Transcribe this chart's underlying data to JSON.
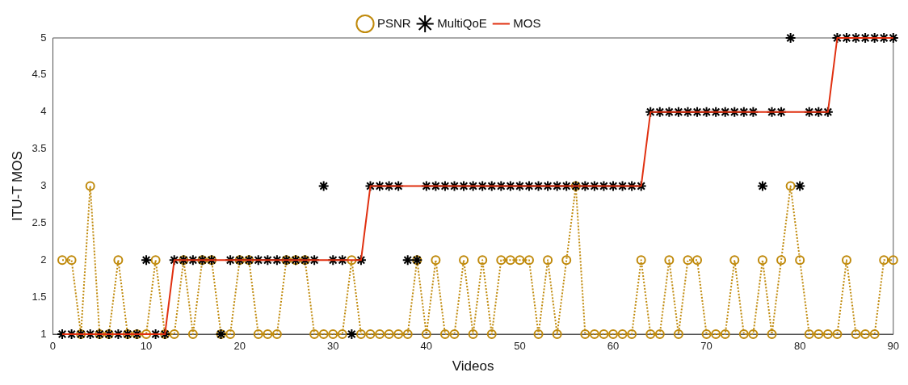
{
  "chart_data": {
    "type": "line",
    "xlabel": "Videos",
    "ylabel": "ITU-T MOS",
    "x": [
      1,
      2,
      3,
      4,
      5,
      6,
      7,
      8,
      9,
      10,
      11,
      12,
      13,
      14,
      15,
      16,
      17,
      18,
      19,
      20,
      21,
      22,
      23,
      24,
      25,
      26,
      27,
      28,
      29,
      30,
      31,
      32,
      33,
      34,
      35,
      36,
      37,
      38,
      39,
      40,
      41,
      42,
      43,
      44,
      45,
      46,
      47,
      48,
      49,
      50,
      51,
      52,
      53,
      54,
      55,
      56,
      57,
      58,
      59,
      60,
      61,
      62,
      63,
      64,
      65,
      66,
      67,
      68,
      69,
      70,
      71,
      72,
      73,
      74,
      75,
      76,
      77,
      78,
      79,
      80,
      81,
      82,
      83,
      84,
      85,
      86,
      87,
      88,
      89,
      90
    ],
    "series": [
      {
        "name": "PSNR",
        "type": "line",
        "color": "#c08a0c",
        "marker": "circle",
        "line_style": "dotted",
        "values": [
          2,
          2,
          1,
          3,
          1,
          1,
          2,
          1,
          1,
          1,
          2,
          1,
          1,
          2,
          1,
          2,
          2,
          1,
          1,
          2,
          2,
          1,
          1,
          1,
          2,
          2,
          2,
          1,
          1,
          1,
          1,
          2,
          1,
          1,
          1,
          1,
          1,
          1,
          2,
          1,
          2,
          1,
          1,
          2,
          1,
          2,
          1,
          2,
          2,
          2,
          2,
          1,
          2,
          1,
          2,
          3,
          1,
          1,
          1,
          1,
          1,
          1,
          2,
          1,
          1,
          2,
          1,
          2,
          2,
          1,
          1,
          1,
          2,
          1,
          1,
          2,
          1,
          2,
          3,
          2,
          1,
          1,
          1,
          1,
          2,
          1,
          1,
          1,
          2,
          2
        ]
      },
      {
        "name": "MultiQoE",
        "type": "scatter",
        "color": "#000000",
        "marker": "cross",
        "values": [
          1,
          1,
          1,
          1,
          1,
          1,
          1,
          1,
          1,
          2,
          1,
          1,
          2,
          2,
          2,
          2,
          2,
          1,
          2,
          2,
          2,
          2,
          2,
          2,
          2,
          2,
          2,
          2,
          3,
          2,
          2,
          1,
          2,
          3,
          3,
          3,
          3,
          2,
          2,
          3,
          3,
          3,
          3,
          3,
          3,
          3,
          3,
          3,
          3,
          3,
          3,
          3,
          3,
          3,
          3,
          3,
          3,
          3,
          3,
          3,
          3,
          3,
          3,
          4,
          4,
          4,
          4,
          4,
          4,
          4,
          4,
          4,
          4,
          4,
          4,
          3,
          4,
          4,
          5,
          3,
          4,
          4,
          4,
          5,
          5,
          5,
          5,
          5,
          5,
          5
        ]
      },
      {
        "name": "MOS",
        "type": "line",
        "color": "#e03010",
        "marker": "none",
        "line_style": "solid",
        "values": [
          1,
          1,
          1,
          1,
          1,
          1,
          1,
          1,
          1,
          1,
          1,
          1,
          2,
          2,
          2,
          2,
          2,
          2,
          2,
          2,
          2,
          2,
          2,
          2,
          2,
          2,
          2,
          2,
          2,
          2,
          2,
          2,
          2,
          3,
          3,
          3,
          3,
          3,
          3,
          3,
          3,
          3,
          3,
          3,
          3,
          3,
          3,
          3,
          3,
          3,
          3,
          3,
          3,
          3,
          3,
          3,
          3,
          3,
          3,
          3,
          3,
          3,
          3,
          4,
          4,
          4,
          4,
          4,
          4,
          4,
          4,
          4,
          4,
          4,
          4,
          4,
          4,
          4,
          4,
          4,
          4,
          4,
          4,
          5,
          5,
          5,
          5,
          5,
          5,
          5
        ]
      }
    ],
    "xlim": [
      0,
      90
    ],
    "xticks": [
      0,
      10,
      20,
      30,
      40,
      50,
      60,
      70,
      80,
      90
    ],
    "ylim": [
      1,
      5
    ],
    "yticks": [
      1,
      1.5,
      2,
      2.5,
      3,
      3.5,
      4,
      4.5,
      5
    ],
    "grid": false,
    "legend": "top"
  }
}
